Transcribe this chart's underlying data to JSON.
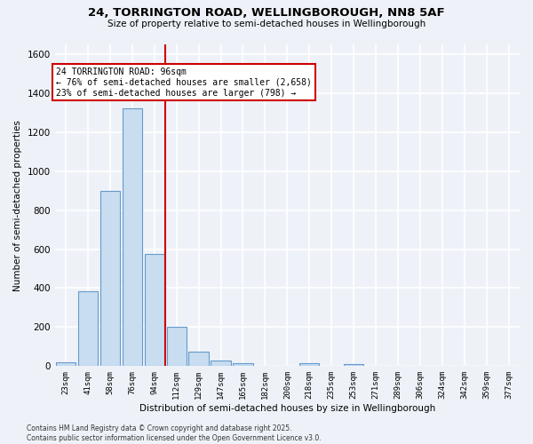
{
  "title": "24, TORRINGTON ROAD, WELLINGBOROUGH, NN8 5AF",
  "subtitle": "Size of property relative to semi-detached houses in Wellingborough",
  "xlabel": "Distribution of semi-detached houses by size in Wellingborough",
  "ylabel": "Number of semi-detached properties",
  "bar_labels": [
    "23sqm",
    "41sqm",
    "58sqm",
    "76sqm",
    "94sqm",
    "112sqm",
    "129sqm",
    "147sqm",
    "165sqm",
    "182sqm",
    "200sqm",
    "218sqm",
    "235sqm",
    "253sqm",
    "271sqm",
    "289sqm",
    "306sqm",
    "324sqm",
    "342sqm",
    "359sqm",
    "377sqm"
  ],
  "bar_values": [
    20,
    385,
    900,
    1320,
    575,
    200,
    75,
    30,
    15,
    0,
    0,
    15,
    0,
    10,
    0,
    0,
    0,
    0,
    0,
    0,
    0
  ],
  "bar_color": "#c8ddf0",
  "bar_edge_color": "#6699cc",
  "vline_x": 4.5,
  "vline_color": "#cc0000",
  "annotation_text": "24 TORRINGTON ROAD: 96sqm\n← 76% of semi-detached houses are smaller (2,658)\n23% of semi-detached houses are larger (798) →",
  "annotation_box_color": "#ffffff",
  "annotation_box_edge": "#cc0000",
  "ylim": [
    0,
    1650
  ],
  "yticks": [
    0,
    200,
    400,
    600,
    800,
    1000,
    1200,
    1400,
    1600
  ],
  "background_color": "#eef2f8",
  "grid_color": "#ffffff",
  "footer_text": "Contains HM Land Registry data © Crown copyright and database right 2025.\nContains public sector information licensed under the Open Government Licence v3.0."
}
